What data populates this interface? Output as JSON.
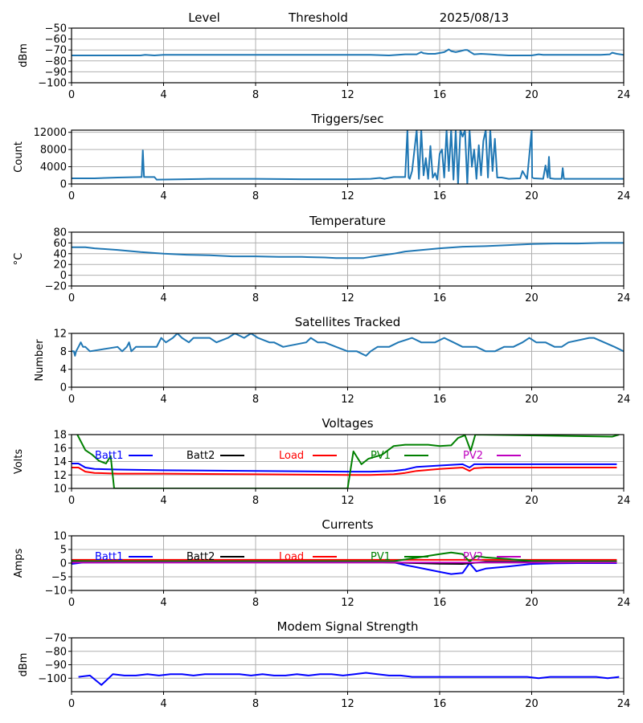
{
  "header": {
    "left": "Level",
    "middle": "Threshold",
    "date": "2025/08/13"
  },
  "chart_data": [
    {
      "id": "level",
      "type": "line",
      "title": "",
      "xlabel": "",
      "ylabel": "dBm",
      "xlim": [
        0,
        24
      ],
      "ylim": [
        -100,
        -50
      ],
      "xticks": [
        0,
        4,
        8,
        12,
        16,
        20,
        24
      ],
      "yticks": [
        -100,
        -90,
        -80,
        -70,
        -60,
        -50
      ],
      "ytick_labels": [
        "−100",
        "−90",
        "−80",
        "−70",
        "−60",
        "−50"
      ],
      "grid": true,
      "legend": "none",
      "series": [
        {
          "name": "Level",
          "color": "#1f77b4",
          "x": [
            0,
            1,
            2,
            3,
            3.2,
            3.6,
            4,
            6,
            8,
            10,
            12,
            13,
            13.8,
            14.5,
            15,
            15.2,
            15.3,
            15.5,
            15.8,
            16.2,
            16.4,
            16.5,
            16.7,
            16.9,
            17.1,
            17.2,
            17.3,
            17.5,
            17.8,
            18.2,
            18.5,
            19,
            19.5,
            20,
            20.3,
            20.5,
            21,
            21.5,
            22,
            23,
            23.4,
            23.5,
            23.7,
            24
          ],
          "y": [
            -75,
            -75,
            -75,
            -75,
            -74.5,
            -75,
            -74.5,
            -74.5,
            -74.5,
            -74.5,
            -74.5,
            -74.5,
            -75,
            -74,
            -74,
            -72,
            -73,
            -73.5,
            -73.5,
            -72,
            -69.5,
            -71,
            -72,
            -71,
            -70,
            -70,
            -71.5,
            -74,
            -73.5,
            -74,
            -74.5,
            -75,
            -75,
            -75,
            -74,
            -74.5,
            -74.5,
            -74.5,
            -74.5,
            -74.5,
            -74,
            -72.5,
            -73.5,
            -74.5
          ]
        }
      ]
    },
    {
      "id": "triggers",
      "type": "line",
      "title": "Triggers/sec",
      "xlabel": "",
      "ylabel": "Count",
      "xlim": [
        0,
        24
      ],
      "ylim": [
        0,
        12500
      ],
      "xticks": [
        0,
        4,
        8,
        12,
        16,
        20,
        24
      ],
      "yticks": [
        0,
        4000,
        8000,
        12000
      ],
      "ytick_labels": [
        "0",
        "4000",
        "8000",
        "12000"
      ],
      "grid": true,
      "legend": "none",
      "series": [
        {
          "name": "Triggers",
          "color": "#1f77b4",
          "x": [
            0,
            1,
            2,
            3,
            3.05,
            3.1,
            3.15,
            3.6,
            3.7,
            6,
            8,
            10,
            12,
            13,
            13.4,
            13.6,
            14,
            14.5,
            14.6,
            14.65,
            14.7,
            14.8,
            15,
            15.1,
            15.2,
            15.3,
            15.4,
            15.5,
            15.6,
            15.7,
            15.8,
            15.9,
            16,
            16.1,
            16.2,
            16.3,
            16.4,
            16.5,
            16.6,
            16.7,
            16.8,
            16.9,
            17,
            17.1,
            17.2,
            17.3,
            17.4,
            17.5,
            17.6,
            17.7,
            17.8,
            17.9,
            18,
            18.1,
            18.2,
            18.3,
            18.4,
            18.5,
            18.7,
            19,
            19.5,
            19.6,
            19.8,
            20,
            20.02,
            20.1,
            20.5,
            20.6,
            20.7,
            20.75,
            20.8,
            21,
            21.3,
            21.35,
            21.4,
            21.6,
            22,
            23,
            24
          ],
          "y": [
            1300,
            1300,
            1500,
            1600,
            1600,
            7800,
            1600,
            1600,
            1000,
            1200,
            1200,
            1100,
            1100,
            1200,
            1400,
            1200,
            1600,
            1600,
            12500,
            1500,
            1200,
            3000,
            12500,
            1200,
            12500,
            2000,
            6000,
            1200,
            8800,
            1500,
            2500,
            1000,
            7000,
            8000,
            1500,
            12500,
            3000,
            12500,
            1000,
            12500,
            0,
            12500,
            11000,
            12500,
            0,
            12500,
            4000,
            8000,
            1200,
            9000,
            2000,
            10000,
            12500,
            1500,
            12500,
            3000,
            10500,
            1500,
            1500,
            1200,
            1300,
            3000,
            1200,
            12500,
            1500,
            1300,
            1200,
            4300,
            1500,
            6300,
            1300,
            1200,
            1200,
            3700,
            1200,
            1200,
            1200,
            1200,
            1200
          ]
        }
      ]
    },
    {
      "id": "temperature",
      "type": "line",
      "title": "Temperature",
      "xlabel": "",
      "ylabel": "°C",
      "xlim": [
        0,
        24
      ],
      "ylim": [
        -20,
        80
      ],
      "xticks": [
        0,
        4,
        8,
        12,
        16,
        20,
        24
      ],
      "yticks": [
        -20,
        0,
        20,
        40,
        60,
        80
      ],
      "ytick_labels": [
        "−20",
        "0",
        "20",
        "40",
        "60",
        "80"
      ],
      "grid": true,
      "legend": "none",
      "series": [
        {
          "name": "Temperature",
          "color": "#1f77b4",
          "x": [
            0,
            0.6,
            1,
            2,
            3,
            4,
            5,
            6,
            7,
            8,
            9,
            10,
            11,
            11.5,
            12,
            12.7,
            13,
            13.5,
            14,
            14.5,
            15,
            16,
            17,
            18,
            19,
            20,
            21,
            22,
            23,
            24
          ],
          "y": [
            52,
            52,
            50,
            47,
            43,
            40,
            38,
            37,
            35,
            35,
            34,
            34,
            33,
            32,
            32,
            32,
            34,
            37,
            40,
            44,
            46,
            50,
            53,
            54,
            56,
            58,
            59,
            59,
            60,
            60
          ]
        }
      ]
    },
    {
      "id": "satellites",
      "type": "line",
      "title": "Satellites Tracked",
      "xlabel": "",
      "ylabel": "Number",
      "xlim": [
        0,
        24
      ],
      "ylim": [
        0,
        12
      ],
      "xticks": [
        0,
        4,
        8,
        12,
        16,
        20,
        24
      ],
      "yticks": [
        0,
        4,
        8,
        12
      ],
      "ytick_labels": [
        "0",
        "4",
        "8",
        "12"
      ],
      "grid": true,
      "legend": "none",
      "series": [
        {
          "name": "Satellites",
          "color": "#1f77b4",
          "x": [
            0,
            0.1,
            0.15,
            0.2,
            0.3,
            0.4,
            0.5,
            0.6,
            0.8,
            2,
            2.2,
            2.4,
            2.5,
            2.6,
            2.8,
            3.7,
            3.9,
            4.1,
            4.4,
            4.6,
            4.8,
            5.1,
            5.3,
            6,
            6.3,
            6.8,
            7.1,
            7.5,
            7.8,
            8.1,
            8.6,
            8.8,
            9.2,
            10.2,
            10.4,
            10.7,
            11,
            11.5,
            12,
            12.4,
            12.8,
            13,
            13.3,
            13.8,
            14.2,
            14.8,
            15.2,
            15.8,
            16.2,
            16.6,
            17,
            17.6,
            18,
            18.4,
            18.8,
            19.2,
            19.6,
            19.9,
            20.2,
            20.6,
            21,
            21.3,
            21.6,
            22.5,
            22.7,
            23.6,
            24
          ],
          "y": [
            8,
            8,
            7,
            8,
            9,
            10,
            9,
            9,
            8,
            9,
            8,
            9,
            10,
            8,
            9,
            9,
            11,
            10,
            11,
            12,
            11,
            10,
            11,
            11,
            10,
            11,
            12,
            11,
            12,
            11,
            10,
            10,
            9,
            10,
            11,
            10,
            10,
            9,
            8,
            8,
            7,
            8,
            9,
            9,
            10,
            11,
            10,
            10,
            11,
            10,
            9,
            9,
            8,
            8,
            9,
            9,
            10,
            11,
            10,
            10,
            9,
            9,
            10,
            11,
            11,
            9,
            8
          ]
        }
      ]
    },
    {
      "id": "voltages",
      "type": "line",
      "title": "Voltages",
      "xlabel": "",
      "ylabel": "Volts",
      "xlim": [
        0,
        24
      ],
      "ylim": [
        10,
        18
      ],
      "xticks": [
        0,
        4,
        8,
        12,
        16,
        20,
        24
      ],
      "yticks": [
        10,
        12,
        14,
        16,
        18
      ],
      "ytick_labels": [
        "10",
        "12",
        "14",
        "16",
        "18"
      ],
      "grid": true,
      "legend": "top",
      "series": [
        {
          "name": "Batt1",
          "color": "#0000ff",
          "x": [
            0,
            0.3,
            0.6,
            1,
            2,
            4,
            8,
            12,
            13,
            14,
            14.5,
            15,
            16,
            17,
            17.3,
            17.5,
            18,
            20,
            22,
            23.7
          ],
          "y": [
            13.7,
            13.7,
            13.1,
            12.9,
            12.8,
            12.7,
            12.6,
            12.5,
            12.5,
            12.6,
            12.8,
            13.2,
            13.4,
            13.6,
            13.1,
            13.6,
            13.6,
            13.6,
            13.6,
            13.6
          ]
        },
        {
          "name": "Batt2",
          "color": "#000000",
          "x": [],
          "y": []
        },
        {
          "name": "Load",
          "color": "#ff0000",
          "x": [
            0,
            0.3,
            0.6,
            1,
            2,
            4,
            8,
            12,
            13,
            14,
            14.5,
            15,
            16,
            17,
            17.3,
            17.5,
            18,
            20,
            22,
            23.7
          ],
          "y": [
            13.1,
            13.1,
            12.5,
            12.3,
            12.2,
            12.2,
            12.1,
            12.0,
            12.0,
            12.1,
            12.3,
            12.6,
            12.9,
            13.1,
            12.6,
            13.0,
            13.1,
            13.1,
            13.1,
            13.1
          ]
        },
        {
          "name": "PV1",
          "color": "#008000",
          "x": [
            0.25,
            0.6,
            0.9,
            1.2,
            1.5,
            1.7,
            1.85,
            12.0,
            12.25,
            12.6,
            12.9,
            13.5,
            14.0,
            14.5,
            15.5,
            16.0,
            16.5,
            16.8,
            17.1,
            17.35,
            17.55,
            23.5,
            23.8
          ],
          "y": [
            18.0,
            15.7,
            15.0,
            14.1,
            13.7,
            14.8,
            10.0,
            10.0,
            15.5,
            13.6,
            14.4,
            15.0,
            16.3,
            16.5,
            16.5,
            16.3,
            16.4,
            17.5,
            17.9,
            15.6,
            18.0,
            17.7,
            18.0
          ]
        },
        {
          "name": "PV2",
          "color": "#bf00bf",
          "x": [],
          "y": []
        }
      ]
    },
    {
      "id": "currents",
      "type": "line",
      "title": "Currents",
      "xlabel": "",
      "ylabel": "Amps",
      "xlim": [
        0,
        24
      ],
      "ylim": [
        -10,
        10
      ],
      "xticks": [
        0,
        4,
        8,
        12,
        16,
        20,
        24
      ],
      "yticks": [
        -10,
        -5,
        0,
        5,
        10
      ],
      "ytick_labels": [
        "−10",
        "−5",
        "0",
        "5",
        "10"
      ],
      "grid": true,
      "legend": "top",
      "series": [
        {
          "name": "Batt1",
          "color": "#0000ff",
          "x": [
            0,
            0.5,
            2,
            8,
            14,
            14.5,
            15,
            16,
            16.5,
            17,
            17.3,
            17.6,
            18,
            19,
            20,
            21,
            22,
            23.7
          ],
          "y": [
            -0.3,
            0.2,
            0.3,
            0.3,
            0.3,
            -0.7,
            -1.5,
            -3.2,
            -4.0,
            -3.6,
            0.0,
            -3.0,
            -2.0,
            -1.2,
            -0.3,
            -0.1,
            0.0,
            0.0
          ]
        },
        {
          "name": "Batt2",
          "color": "#000000",
          "x": [
            0,
            4,
            8,
            12,
            16,
            17,
            18,
            20,
            23.7
          ],
          "y": [
            0.5,
            0.6,
            0.6,
            0.6,
            -0.2,
            -0.3,
            0.5,
            0.5,
            0.5
          ]
        },
        {
          "name": "Load",
          "color": "#ff0000",
          "x": [
            0,
            4,
            8,
            12,
            16,
            20,
            23.7
          ],
          "y": [
            1.2,
            1.2,
            1.2,
            1.2,
            1.2,
            1.2,
            1.2
          ]
        },
        {
          "name": "PV1",
          "color": "#008000",
          "x": [
            0,
            1,
            4,
            8,
            12,
            14,
            15,
            16,
            16.5,
            17,
            17.3,
            17.6,
            18,
            19,
            20,
            21,
            23.7
          ],
          "y": [
            0.8,
            0.7,
            0.7,
            0.7,
            0.7,
            0.7,
            2.0,
            3.3,
            3.9,
            3.3,
            0.6,
            2.6,
            2.1,
            1.5,
            0.8,
            0.7,
            0.7
          ]
        },
        {
          "name": "PV2",
          "color": "#bf00bf",
          "x": [
            0,
            4,
            8,
            12,
            16,
            20,
            23.7
          ],
          "y": [
            0.2,
            0.2,
            0.2,
            0.2,
            0.2,
            0.2,
            0.2
          ]
        }
      ]
    },
    {
      "id": "modem",
      "type": "line",
      "title": "Modem Signal Strength",
      "xlabel": "",
      "ylabel": "dBm",
      "xlim": [
        0,
        24
      ],
      "ylim": [
        -110,
        -70
      ],
      "xticks": [
        0,
        4,
        8,
        12,
        16,
        20,
        24
      ],
      "yticks": [
        -100,
        -90,
        -80,
        -70
      ],
      "ytick_labels": [
        "−100",
        "−90",
        "−80",
        "−70"
      ],
      "grid": true,
      "legend": "none",
      "series": [
        {
          "name": "Modem",
          "color": "#0000ff",
          "x": [
            0.3,
            0.8,
            1.3,
            1.8,
            2.3,
            2.8,
            3.3,
            3.8,
            4.3,
            4.8,
            5.3,
            5.8,
            6.3,
            6.8,
            7.3,
            7.8,
            8.3,
            8.8,
            9.3,
            9.8,
            10.3,
            10.8,
            11.3,
            11.8,
            12.3,
            12.8,
            13.3,
            13.8,
            14.3,
            14.8,
            15.3,
            16,
            17,
            18,
            19,
            19.8,
            20.3,
            20.8,
            21.5,
            22,
            22.8,
            23.3,
            23.8
          ],
          "y": [
            -99,
            -98,
            -105,
            -97,
            -98,
            -98,
            -97,
            -98,
            -97,
            -97,
            -98,
            -97,
            -97,
            -97,
            -97,
            -98,
            -97,
            -98,
            -98,
            -97,
            -98,
            -97,
            -97,
            -98,
            -97,
            -96,
            -97,
            -98,
            -98,
            -99,
            -99,
            -99,
            -99,
            -99,
            -99,
            -99,
            -100,
            -99,
            -99,
            -99,
            -99,
            -100,
            -99
          ]
        }
      ]
    }
  ]
}
